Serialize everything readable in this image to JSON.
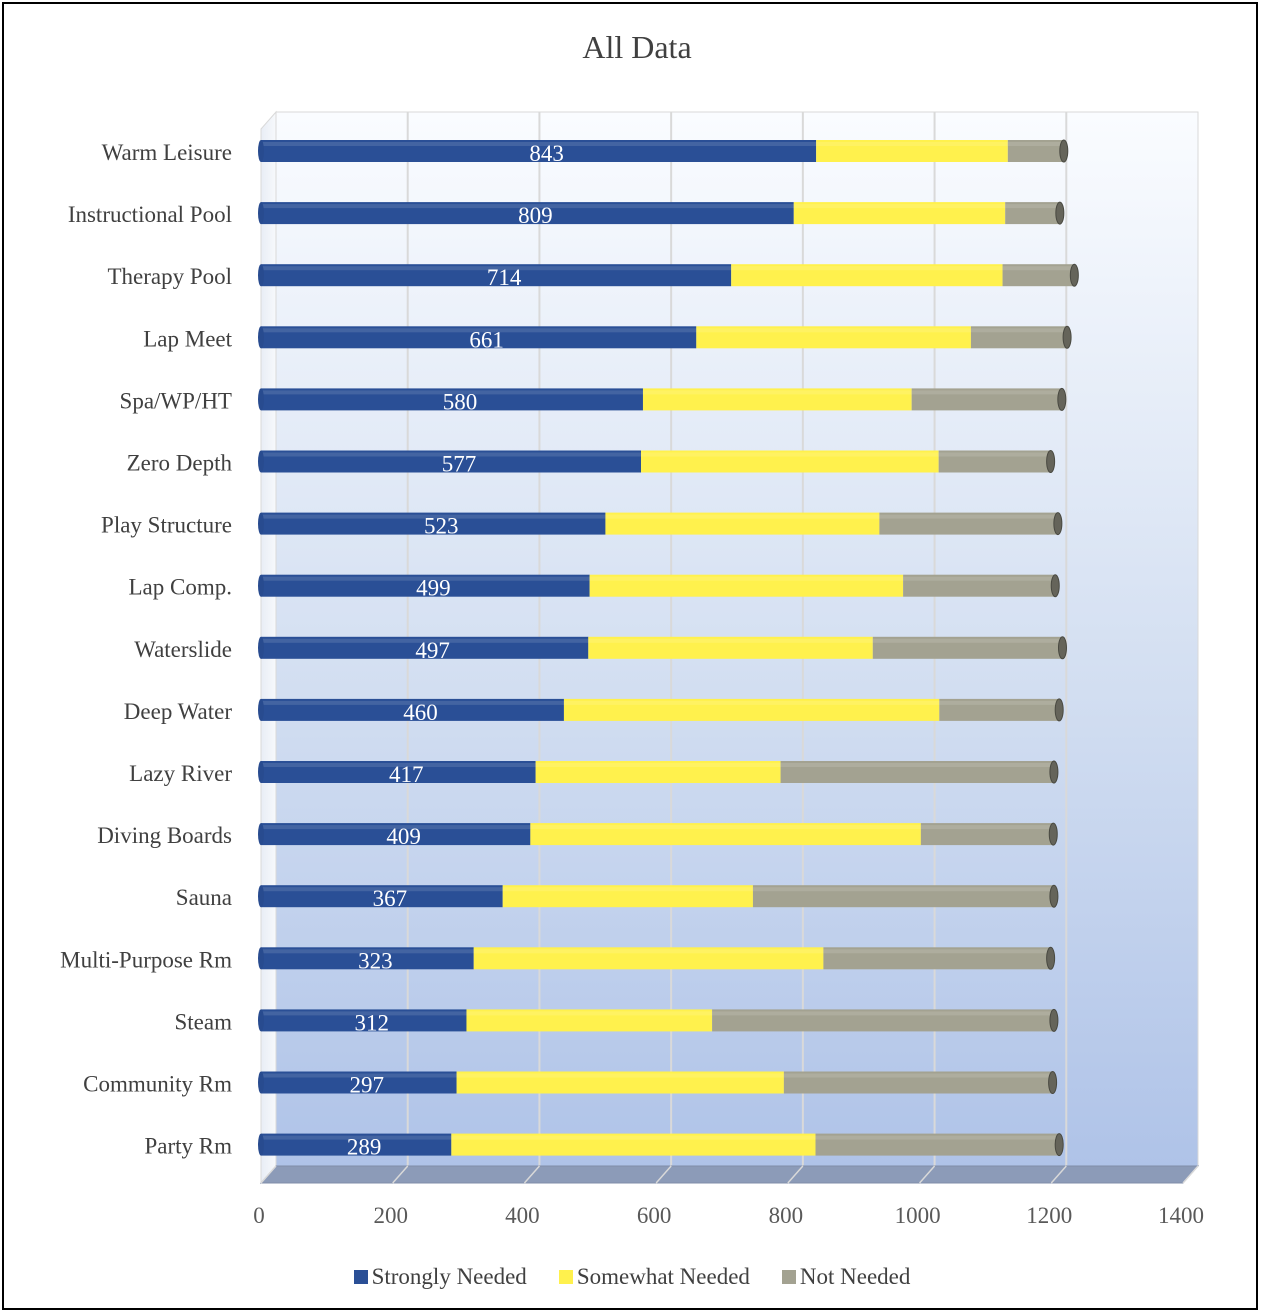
{
  "chart_data": {
    "type": "bar",
    "orientation": "horizontal",
    "stacked": true,
    "title": "All Data",
    "xlabel": "",
    "ylabel": "",
    "xlim": [
      0,
      1400
    ],
    "xticks": [
      0,
      200,
      400,
      600,
      800,
      1000,
      1200,
      1400
    ],
    "grid": true,
    "legend_position": "bottom",
    "categories": [
      "Warm Leisure",
      "Instructional Pool",
      "Therapy Pool",
      "Lap Meet",
      "Spa/WP/HT",
      "Zero Depth",
      "Play Structure",
      "Lap Comp.",
      "Waterslide",
      "Deep Water",
      "Lazy River",
      "Diving Boards",
      "Sauna",
      "Multi-Purpose Rm",
      "Steam",
      "Community Rm",
      "Party Rm"
    ],
    "series": [
      {
        "name": "Strongly Needed",
        "color": "#2A4F96",
        "values": [
          843,
          809,
          714,
          661,
          580,
          577,
          523,
          499,
          497,
          460,
          417,
          409,
          367,
          323,
          312,
          297,
          289
        ],
        "show_labels": true
      },
      {
        "name": "Somewhat Needed",
        "color": "#FFF14D",
        "values": [
          291,
          321,
          412,
          417,
          408,
          452,
          416,
          476,
          432,
          570,
          372,
          593,
          380,
          531,
          373,
          497,
          553
        ]
      },
      {
        "name": "Not Needed",
        "color": "#A3A291",
        "values": [
          85,
          83,
          109,
          146,
          228,
          170,
          271,
          231,
          288,
          182,
          415,
          201,
          457,
          345,
          519,
          408,
          370
        ]
      }
    ]
  }
}
